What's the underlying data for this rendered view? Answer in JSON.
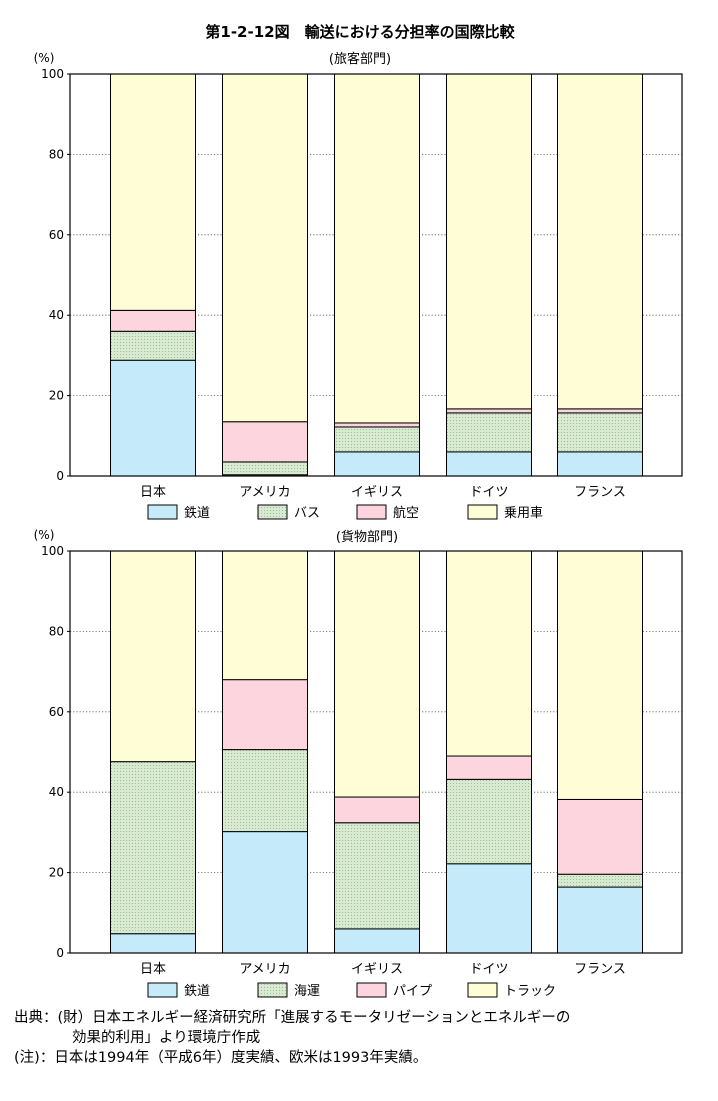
{
  "figure_title": "第1-2-12図　輸送における分担率の国際比較",
  "unit_label": "(%)",
  "charts": [
    {
      "subtitle": "(旅客部門)",
      "legend": [
        {
          "label": "鉄道",
          "color": "#c5ebfb"
        },
        {
          "label": "バス",
          "color": "#d9ead3"
        },
        {
          "label": "航空",
          "color": "#fdd5df"
        },
        {
          "label": "乗用車",
          "color": "#fffdd5"
        }
      ]
    },
    {
      "subtitle": "(貨物部門)",
      "legend": [
        {
          "label": "鉄道",
          "color": "#c5ebfb"
        },
        {
          "label": "海運",
          "color": "#d9ead3"
        },
        {
          "label": "パイプ",
          "color": "#fdd5df"
        },
        {
          "label": "トラック",
          "color": "#fffdd5"
        }
      ]
    }
  ],
  "chart_data": [
    {
      "type": "bar",
      "stacked": true,
      "title": "(旅客部門)",
      "ylabel": "(%)",
      "ylim": [
        0,
        100
      ],
      "yticks": [
        0,
        20,
        40,
        60,
        80,
        100
      ],
      "grid": true,
      "legend_position": "bottom",
      "categories": [
        "日本",
        "アメリカ",
        "イギリス",
        "ドイツ",
        "フランス"
      ],
      "series": [
        {
          "name": "鉄道",
          "values": [
            28.8,
            0.3,
            6.0,
            6.0,
            6.0
          ]
        },
        {
          "name": "バス",
          "values": [
            7.2,
            3.2,
            6.2,
            9.7,
            9.7
          ]
        },
        {
          "name": "航空",
          "values": [
            5.2,
            10.0,
            1.0,
            1.0,
            1.0
          ]
        },
        {
          "name": "乗用車",
          "values": [
            58.8,
            86.5,
            86.8,
            83.3,
            83.3
          ]
        }
      ]
    },
    {
      "type": "bar",
      "stacked": true,
      "title": "(貨物部門)",
      "ylabel": "(%)",
      "ylim": [
        0,
        100
      ],
      "yticks": [
        0,
        20,
        40,
        60,
        80,
        100
      ],
      "grid": true,
      "legend_position": "bottom",
      "categories": [
        "日本",
        "アメリカ",
        "イギリス",
        "ドイツ",
        "フランス"
      ],
      "series": [
        {
          "name": "鉄道",
          "values": [
            4.8,
            30.2,
            6.0,
            22.2,
            16.4
          ]
        },
        {
          "name": "海運",
          "values": [
            42.8,
            20.4,
            26.4,
            21.0,
            3.2
          ]
        },
        {
          "name": "パイプ",
          "values": [
            0.0,
            17.4,
            6.4,
            5.8,
            18.6
          ]
        },
        {
          "name": "トラック",
          "values": [
            52.4,
            32.0,
            61.2,
            51.0,
            61.8
          ]
        }
      ]
    }
  ],
  "footnotes": {
    "source_line1": "出典：(財）日本エネルギー経済研究所「進展するモータリゼーションとエネルギーの",
    "source_line2": "効果的利用」より環境庁作成",
    "note": "(注)：日本は1994年（平成6年）度実績、欧米は1993年実績。"
  }
}
